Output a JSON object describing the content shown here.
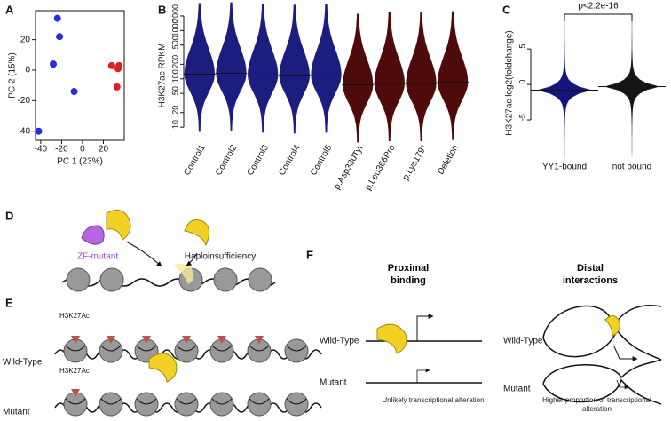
{
  "chart_data": [
    {
      "type": "scatter",
      "panel": "A",
      "xlabel": "PC 1 (23%)",
      "ylabel": "PC 2 (15%)",
      "xlim": [
        -45,
        40
      ],
      "xticks": [
        -40,
        -20,
        0,
        20
      ],
      "ylim": [
        -46,
        39
      ],
      "yticks": [
        -40,
        -20,
        0,
        20
      ],
      "series": [
        {
          "color": "#2b2be0",
          "x": [
            -24,
            -22,
            -28,
            -8,
            -42
          ],
          "values": [
            34,
            22,
            4,
            -14,
            -40
          ]
        },
        {
          "color": "#d91f1f",
          "x": [
            28,
            34,
            35,
            33
          ],
          "values": [
            3,
            1,
            3,
            -11
          ]
        }
      ]
    },
    {
      "type": "violin",
      "panel": "B",
      "ylabel": "H3K27ac RPKM",
      "log": true,
      "ylim": [
        4.9,
        2800
      ],
      "yticks": [
        10,
        20,
        50,
        100,
        200,
        500,
        1000,
        2000
      ],
      "categories": [
        "Control1",
        "Control2",
        "Control3",
        "Control4",
        "Control5",
        "p.Asp380Tyr",
        "p.Leu366Pro",
        "p.Lys179*",
        "Deletion"
      ],
      "values": [
        125,
        130,
        120,
        115,
        120,
        75,
        80,
        80,
        85
      ],
      "colors": [
        "#1d1d80",
        "#1d1d80",
        "#1d1d80",
        "#1d1d80",
        "#1d1d80",
        "#4f0b0b",
        "#4f0b0b",
        "#4f0b0b",
        "#4f0b0b"
      ]
    },
    {
      "type": "violin",
      "panel": "C",
      "ylabel": "H3K27ac log2(foldchange)",
      "log": false,
      "ylim": [
        -10,
        10.4
      ],
      "yticks": [
        -5,
        0,
        5
      ],
      "annotation": "p<2.2e-16",
      "categories": [
        "YY1-bound",
        "not bound"
      ],
      "values": [
        -0.8,
        -0.3
      ],
      "colors": [
        "#15157c",
        "#151515"
      ]
    }
  ],
  "diagrams": {
    "D": {
      "panel": "D",
      "labels": [
        "ZF-mutant",
        "Haploinsufficiency"
      ]
    },
    "E": {
      "panel": "E",
      "mark_labels": [
        "H3K27Ac",
        "H3K27Ac"
      ],
      "rows": [
        "Wild-Type",
        "Mutant"
      ]
    },
    "F": {
      "panel": "F",
      "columns": [
        {
          "title": "Proximal binding",
          "rows": [
            "Wild-Type",
            "Mutant"
          ],
          "note": "Unlikely transcriptional alteration"
        },
        {
          "title": "Distal interactions",
          "rows": [
            "Wild-Type",
            "Mutant"
          ],
          "note": "Higher proportion of transcriptional alteration"
        }
      ]
    }
  }
}
